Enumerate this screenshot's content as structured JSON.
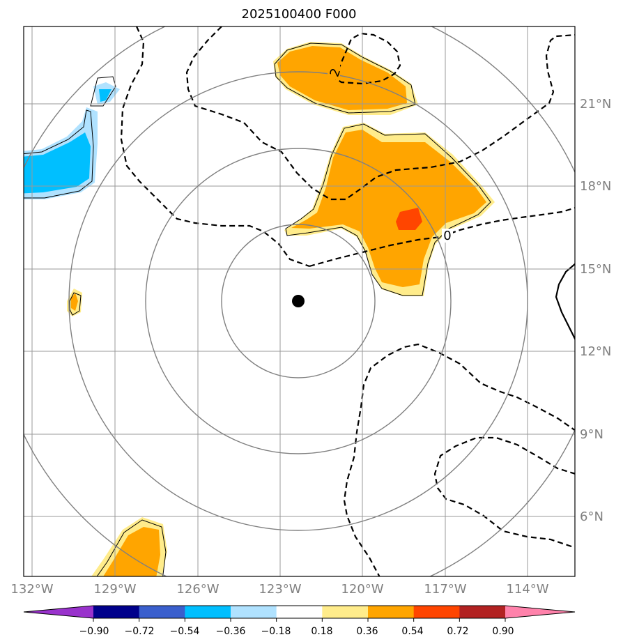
{
  "chart_data": {
    "type": "heatmap",
    "title": "2025100400 F000",
    "x_ticks": [
      "132°W",
      "129°W",
      "126°W",
      "123°W",
      "120°W",
      "117°W",
      "114°W"
    ],
    "y_ticks": [
      "21°N",
      "18°N",
      "15°N",
      "12°N",
      "9°N",
      "6°N"
    ],
    "xlim": [
      -132.3,
      -112.2
    ],
    "ylim": [
      3.7,
      23.7
    ],
    "grid": true,
    "center_marker": {
      "lon": -122.4,
      "lat": 13.8
    },
    "range_rings_deg": [
      2.8,
      5.6,
      8.4,
      11.2
    ],
    "colorbar": {
      "ticks": [
        "−0.90",
        "−0.72",
        "−0.54",
        "−0.36",
        "−0.18",
        "0.18",
        "0.36",
        "0.54",
        "0.72",
        "0.90"
      ],
      "colors": [
        "#9932cc",
        "#00008b",
        "#3a5fcd",
        "#00bfff",
        "#b0e2ff",
        "#ffffff",
        "#ffec8b",
        "#ffa500",
        "#ff4500",
        "#b22222",
        "#ff82ab"
      ],
      "extend": "both"
    },
    "contour_labels": [
      "2",
      "0"
    ]
  }
}
